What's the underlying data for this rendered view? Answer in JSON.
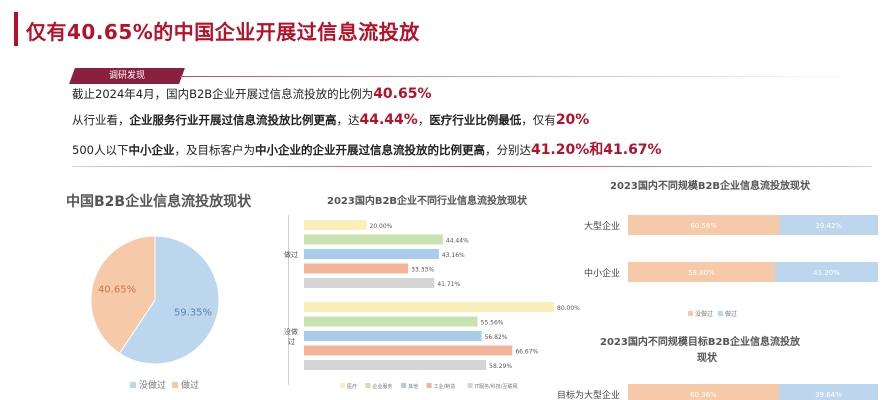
{
  "header": {
    "title": "仅有40.65%的中国企业开展过信息流投放",
    "tag": "调研发现"
  },
  "findings": {
    "line1_text": "截止2024年4月，国内B2B企业开展过信息流投放的比例为",
    "line1_value": "40.65%",
    "line2_pre": "从行业看，",
    "line2_bold1": "企业服务行业开展过信息流投放比例更高",
    "line2_mid": "，达",
    "line2_value1": "44.44%",
    "line2_comma": "，",
    "line2_bold2": "医疗行业比例最低",
    "line2_mid2": "，仅有",
    "line2_value2": "20%",
    "line3_pre": "500人以下",
    "line3_bold1": "中小企业",
    "line3_mid": "，及目标客户为",
    "line3_bold2": "中小企业的企业开展过信息流投放的比例更高",
    "line3_mid2": "，分别达",
    "line3_value": "41.20%和41.67%"
  },
  "colors": {
    "accent": "#b3122a",
    "blue": "#bcd6ee",
    "orange": "#f6c9a8",
    "yellow": "#fbeeb8",
    "green": "#c9e3b0",
    "lightblue": "#a9cbec",
    "salmon": "#f3b49a",
    "grey": "#d4d4d4"
  },
  "chart_data": [
    {
      "type": "pie",
      "title": "中国B2B企业信息流投放现状",
      "labels": [
        "没做过",
        "做过"
      ],
      "values": [
        59.35,
        40.65
      ],
      "data_labels": [
        "59.35%",
        "40.65%"
      ],
      "legend": [
        "没做过",
        "做过"
      ]
    },
    {
      "type": "bar",
      "orientation": "horizontal",
      "title": "2023国内B2B企业不同行业信息流投放现状",
      "categories": [
        "做过",
        "没做过"
      ],
      "xlim": [
        0,
        80
      ],
      "series": [
        {
          "name": "医疗",
          "values": [
            20.0,
            80.0
          ],
          "labels": [
            "20.00%",
            "80.00%"
          ]
        },
        {
          "name": "企业服务",
          "values": [
            44.44,
            55.56
          ],
          "labels": [
            "44.44%",
            "55.56%"
          ]
        },
        {
          "name": "其他",
          "values": [
            43.16,
            56.82
          ],
          "labels": [
            "43.16%",
            "56.82%"
          ]
        },
        {
          "name": "工业/制造",
          "values": [
            33.33,
            66.67
          ],
          "labels": [
            "33.33%",
            "66.67%"
          ]
        },
        {
          "name": "IT服务/科技/互联网",
          "values": [
            41.71,
            58.29
          ],
          "labels": [
            "41.71%",
            "58.29%"
          ]
        }
      ]
    },
    {
      "type": "bar",
      "orientation": "horizontal",
      "stacked": true,
      "title": "2023国内不同规模B2B企业信息流投放现状",
      "categories": [
        "大型企业",
        "中小企业"
      ],
      "series": [
        {
          "name": "没做过",
          "values": [
            60.58,
            58.8
          ],
          "labels": [
            "60.58%",
            "58.80%"
          ]
        },
        {
          "name": "做过",
          "values": [
            39.42,
            41.2
          ],
          "labels": [
            "39.42%",
            "41.20%"
          ]
        }
      ],
      "legend": [
        "没做过",
        "做过"
      ]
    },
    {
      "type": "bar",
      "orientation": "horizontal",
      "stacked": true,
      "title_line1": "2023国内不同规模目标B2B企业信息流投放",
      "title_line2": "现状",
      "categories": [
        "目标为大型企业"
      ],
      "series": [
        {
          "name": "没做过",
          "values": [
            60.36
          ],
          "labels": [
            "60.36%"
          ]
        },
        {
          "name": "做过",
          "values": [
            39.64
          ],
          "labels": [
            "39.64%"
          ]
        }
      ]
    }
  ]
}
